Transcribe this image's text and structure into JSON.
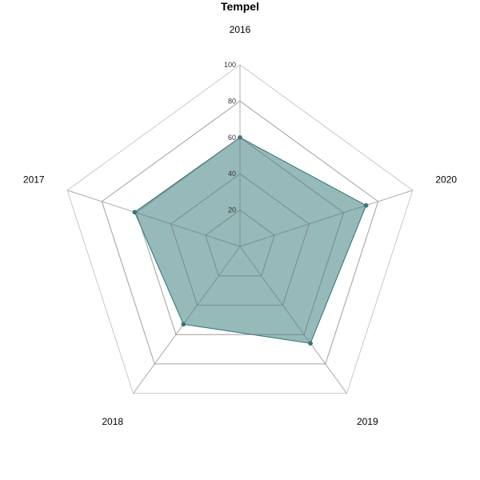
{
  "chart_data": {
    "type": "radar",
    "title": "Tempel",
    "categories": [
      "2016",
      "2020",
      "2019",
      "2018",
      "2017"
    ],
    "series": [
      {
        "values": [
          60,
          73,
          66,
          53,
          61
        ],
        "color": "#2e7373"
      }
    ],
    "rlim": [
      0,
      100
    ],
    "ticks": [
      "20",
      "40",
      "60",
      "80",
      "100"
    ],
    "tick_values": [
      20,
      40,
      60,
      80,
      100
    ],
    "grid": true
  }
}
